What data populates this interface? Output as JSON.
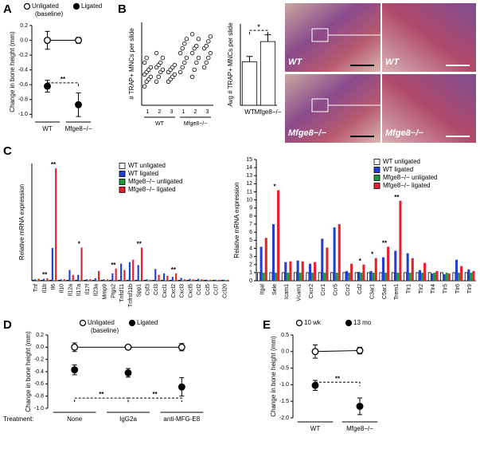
{
  "chart_data": [
    {
      "type": "dot",
      "panel": "A",
      "ylabel": "Change in bone height (mm)",
      "categories": [
        "WT",
        "Mfge8−/−"
      ],
      "series": [
        {
          "name": "Unligated",
          "color": "#ffffff",
          "connected": true,
          "values": [
            0,
            0
          ],
          "errors": [
            0.12,
            0.04
          ]
        },
        {
          "name": "Ligated",
          "color": "#000000",
          "values": [
            -0.62,
            -0.87
          ],
          "errors": [
            0.08,
            0.16
          ]
        }
      ],
      "legend_note": "(baseline)",
      "annotations": [
        "**"
      ],
      "ylim": [
        -1.05,
        0.2
      ],
      "yticks": [
        0.2,
        {
          "value": 0,
          "label": "0.0"
        },
        -0.2,
        -0.4,
        -0.6,
        -0.8,
        {
          "value": -1,
          "label": "-1.0"
        }
      ]
    },
    {
      "type": "strip",
      "panel": "B",
      "ylabel": "# TRAP+ MNCs per slide",
      "categories": [
        "1",
        "2",
        "3",
        "1",
        "2",
        "3"
      ],
      "groups": [
        "WT",
        "Mfge8−/−"
      ],
      "color": "#ffffff",
      "values": [
        [
          8,
          10,
          11,
          12,
          13,
          14,
          15,
          16,
          18,
          20
        ],
        [
          10,
          12,
          14,
          15,
          16,
          17,
          18,
          20,
          22
        ],
        [
          10,
          11,
          12,
          13,
          14,
          15,
          16,
          17
        ],
        [
          14,
          16,
          18,
          20,
          22,
          24,
          26,
          28
        ],
        [
          12,
          15,
          18,
          20,
          22,
          24,
          25,
          28,
          30
        ],
        [
          16,
          18,
          20,
          22,
          24,
          25,
          27,
          29
        ]
      ],
      "ylim": [
        0,
        35
      ]
    },
    {
      "type": "bar",
      "ylabel": "Avg # TRAP+ MNCs per slide",
      "categories": [
        "WT",
        "Mfge8−/−"
      ],
      "series": [
        {
          "color": "#ffffff",
          "values": [
            16,
            23.5
          ],
          "errors": [
            2,
            2.5
          ]
        }
      ],
      "annotations": [
        "*"
      ],
      "ylim": [
        0,
        30
      ]
    },
    {
      "type": "bar",
      "panel": "C",
      "ylabel": "Relative mRNA expression",
      "legend": "upper right",
      "categories": [
        "Tnf",
        "Il1b",
        "Il6",
        "Il10",
        "Il12a",
        "Il17a",
        "Il17f",
        "Il23a",
        "Mmp9",
        "Ptgs2",
        "Tnfsf11",
        "Tnfrsf11b",
        "Spp1",
        "Csf3",
        "Ccl3",
        "Cxcl1",
        "Cxcl2",
        "Cxcl3",
        "Cxcl5",
        "Ccl2",
        "Ccl5",
        "Ccl7",
        "Ccl20"
      ],
      "series": [
        {
          "name": "WT unligated",
          "color": "#ffffff",
          "values": [
            1,
            1,
            1,
            1,
            1,
            1,
            1,
            1,
            1,
            1,
            1,
            1,
            1,
            1,
            1,
            1,
            1,
            1,
            1,
            1,
            1,
            1,
            1
          ]
        },
        {
          "name": "WT ligated",
          "color": "#1f3fd6",
          "values": [
            3,
            4,
            67,
            3,
            22,
            12,
            3,
            5,
            3,
            15,
            35,
            38,
            32,
            3,
            24,
            15,
            8,
            6,
            4,
            4,
            2,
            2,
            2
          ]
        },
        {
          "name": "Mfge8−/− unligated",
          "color": "#1f9a3a",
          "values": [
            1,
            1,
            1,
            1,
            1,
            1,
            1,
            1,
            1,
            1,
            1,
            1,
            1,
            1,
            1,
            1,
            1,
            1,
            1,
            1,
            1,
            1,
            1
          ]
        },
        {
          "name": "Mfge8−/− ligated",
          "color": "#e8202a",
          "values": [
            4,
            5,
            230,
            3,
            12,
            68,
            3,
            20,
            3,
            25,
            22,
            43,
            68,
            2,
            12,
            10,
            15,
            3,
            3,
            3,
            2,
            2,
            2
          ]
        }
      ],
      "significance": [
        null,
        "**",
        "**",
        null,
        null,
        "*",
        null,
        null,
        null,
        "**",
        null,
        null,
        "**",
        null,
        null,
        null,
        "**",
        null,
        null,
        null,
        null,
        null,
        null
      ],
      "ylim": [
        0,
        240
      ]
    },
    {
      "type": "bar",
      "ylabel": "Relative mRNA expression",
      "legend": "upper right",
      "categories": [
        "Itgal",
        "Sele",
        "Icam1",
        "Vcam1",
        "Cxcr2",
        "Ccr1",
        "Ccr5",
        "Ccr2",
        "Cd2",
        "C3ar1",
        "C5ar1",
        "Trem1",
        "Tlr1",
        "Tlr2",
        "Tlr4",
        "Tlr5",
        "Tlr6",
        "Tlr9"
      ],
      "series": [
        {
          "name": "WT unligated",
          "color": "#ffffff",
          "values": [
            1,
            1,
            1,
            1,
            1,
            1,
            1,
            1,
            1,
            1,
            1,
            1,
            1,
            1,
            1,
            1,
            1,
            1
          ]
        },
        {
          "name": "WT ligated",
          "color": "#1f3fd6",
          "values": [
            4.2,
            7,
            2.3,
            2.5,
            2.1,
            5.2,
            6.6,
            1.2,
            1.1,
            1.2,
            2.9,
            3.7,
            3.4,
            1.3,
            0.9,
            0.8,
            2.6,
            1.4
          ]
        },
        {
          "name": "Mfge8−/− unligated",
          "color": "#1f9a3a",
          "values": [
            1,
            1,
            1,
            1,
            1,
            1,
            1,
            1,
            1,
            1,
            1,
            1,
            1,
            1,
            1,
            1,
            1,
            1
          ]
        },
        {
          "name": "Mfge8−/− ligated",
          "color": "#e8202a",
          "values": [
            5.3,
            11.2,
            2.4,
            2.4,
            2.3,
            4.1,
            7,
            2.1,
            2,
            2.8,
            4.2,
            9.9,
            2.8,
            2.2,
            1.2,
            0.9,
            1.8,
            1.2
          ]
        }
      ],
      "significance": [
        null,
        "*",
        null,
        null,
        null,
        null,
        null,
        null,
        "*",
        "*",
        "**",
        "**",
        null,
        null,
        null,
        null,
        null,
        null
      ],
      "ylim": [
        0,
        15
      ],
      "yticks": [
        0,
        1,
        2,
        3,
        4,
        5,
        6,
        7,
        8,
        9,
        10,
        11,
        12,
        13,
        14,
        15
      ]
    },
    {
      "type": "dot",
      "panel": "D",
      "ylabel": "Change in bone height (mm)",
      "xlabel": "Treatment:",
      "categories": [
        "None",
        "IgG2a",
        "anti-MFG-E8"
      ],
      "series": [
        {
          "name": "Unligated",
          "color": "#ffffff",
          "connected": true,
          "values": [
            0,
            0,
            0
          ],
          "errors": [
            0.07,
            0.03,
            0.06
          ]
        },
        {
          "name": "Ligated",
          "color": "#000000",
          "values": [
            -0.37,
            -0.42,
            -0.65
          ],
          "errors": [
            0.08,
            0.07,
            0.15
          ]
        }
      ],
      "legend_note": "(baseline)",
      "annotations": [
        "**",
        "**"
      ],
      "ylim": [
        -1.0,
        0.2
      ],
      "yticks": [
        0.2,
        {
          "value": 0,
          "label": "0.0"
        },
        -0.2,
        -0.4,
        -0.6,
        -0.8,
        {
          "value": -1,
          "label": "-1.0"
        }
      ]
    },
    {
      "type": "dot",
      "panel": "E",
      "ylabel": "Change in bone height (mm)",
      "categories": [
        "WT",
        "Mfge8−/−"
      ],
      "series": [
        {
          "name": "10 wk",
          "color": "#ffffff",
          "connected": true,
          "values": [
            0,
            0.03
          ],
          "errors": [
            0.2,
            0.1
          ]
        },
        {
          "name": "13 mo",
          "color": "#000000",
          "values": [
            -1.02,
            -1.65
          ],
          "errors": [
            0.15,
            0.25
          ]
        }
      ],
      "annotations": [
        "**"
      ],
      "ylim": [
        -2.0,
        0.5
      ],
      "yticks": [
        0.5,
        {
          "value": 0,
          "label": "0.0"
        },
        -0.5,
        {
          "value": -1,
          "label": "-1.0"
        },
        -1.5,
        {
          "value": -2,
          "label": "-2.0"
        }
      ]
    }
  ],
  "micrographs": [
    {
      "label": "WT"
    },
    {
      "label": "WT"
    },
    {
      "label": "Mfge8−/−"
    },
    {
      "label": "Mfge8−/−"
    }
  ]
}
